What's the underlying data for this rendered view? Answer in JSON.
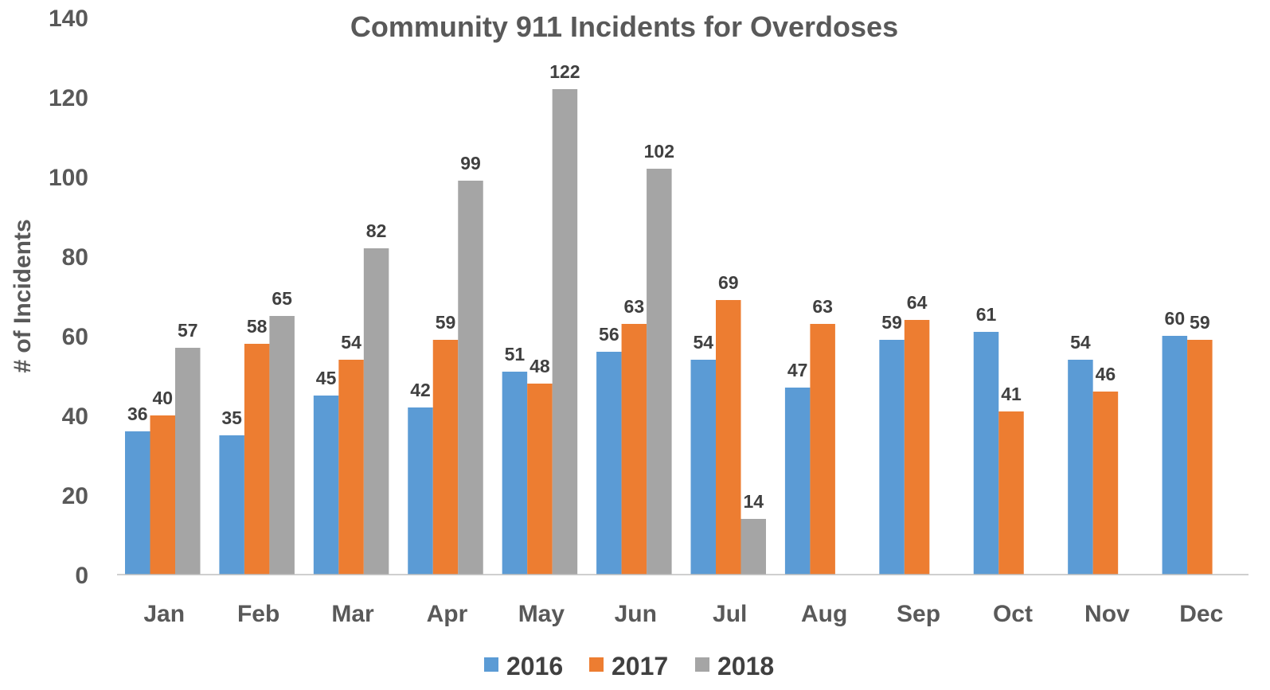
{
  "chart_data": {
    "type": "bar",
    "title": "Community 911 Incidents for Overdoses",
    "xlabel": "",
    "ylabel": "# of Incidents",
    "ylim": [
      0,
      140
    ],
    "yticks": [
      0,
      20,
      40,
      60,
      80,
      100,
      120,
      140
    ],
    "grid": false,
    "legend_position": "bottom",
    "categories": [
      "Jan",
      "Feb",
      "Mar",
      "Apr",
      "May",
      "Jun",
      "Jul",
      "Aug",
      "Sep",
      "Oct",
      "Nov",
      "Dec"
    ],
    "series": [
      {
        "name": "2016",
        "color": "#5b9bd5",
        "values": [
          36,
          35,
          45,
          42,
          51,
          56,
          54,
          47,
          59,
          61,
          54,
          60
        ]
      },
      {
        "name": "2017",
        "color": "#ed7d31",
        "values": [
          40,
          58,
          54,
          59,
          48,
          63,
          69,
          63,
          64,
          41,
          46,
          59
        ]
      },
      {
        "name": "2018",
        "color": "#a5a5a5",
        "values": [
          57,
          65,
          82,
          99,
          122,
          102,
          14,
          null,
          null,
          null,
          null,
          null
        ]
      }
    ]
  }
}
